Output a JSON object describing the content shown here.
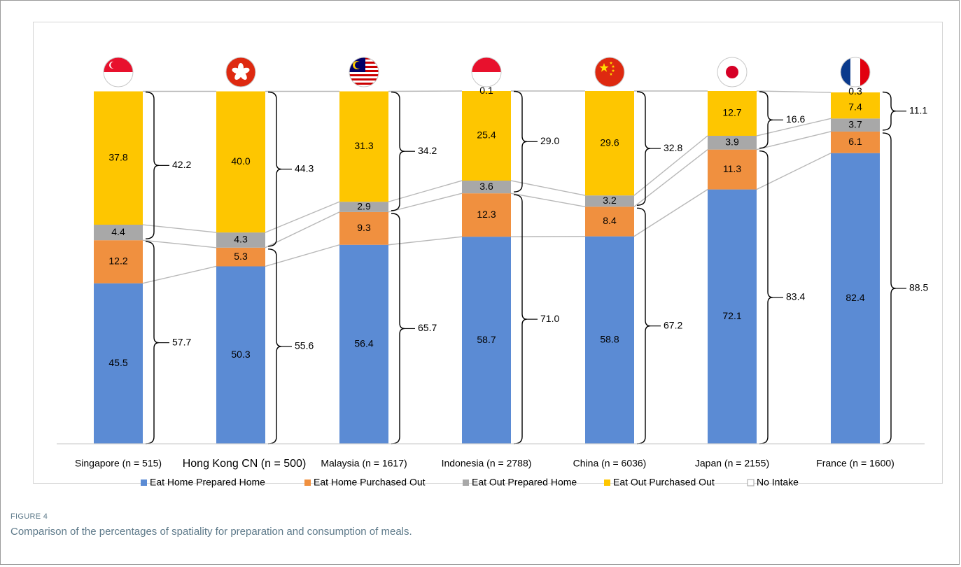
{
  "figure": {
    "label": "FIGURE 4",
    "caption": "Comparison of the percentages of spatiality for preparation and consumption of meals."
  },
  "chart_data": {
    "type": "bar",
    "stacked": true,
    "categories": [
      "Singapore (n = 515)",
      "Hong Kong CN (n = 500)",
      "Malaysia (n = 1617)",
      "Indonesia (n = 2788)",
      "China (n = 6036)",
      "Japan (n = 2155)",
      "France (n = 1600)"
    ],
    "flags": [
      "singapore-flag-icon",
      "hong-kong-flag-icon",
      "malaysia-flag-icon",
      "indonesia-flag-icon",
      "china-flag-icon",
      "japan-flag-icon",
      "france-flag-icon"
    ],
    "series": [
      {
        "name": "Eat Home Prepared Home",
        "color": "#5b8bd4",
        "values": [
          45.5,
          50.3,
          56.4,
          58.7,
          58.8,
          72.1,
          82.4
        ]
      },
      {
        "name": "Eat Home Purchased Out",
        "color": "#f0903f",
        "values": [
          12.2,
          5.3,
          9.3,
          12.3,
          8.4,
          11.3,
          6.1
        ]
      },
      {
        "name": "Eat Out Prepared Home",
        "color": "#a8a8a8",
        "values": [
          4.4,
          4.3,
          2.9,
          3.6,
          3.2,
          3.9,
          3.7
        ]
      },
      {
        "name": "Eat Out Purchased Out",
        "color": "#fec600",
        "values": [
          37.8,
          40.0,
          31.3,
          25.4,
          29.6,
          12.7,
          7.4
        ]
      },
      {
        "name": "No Intake",
        "color": "#ffffff",
        "values": [
          0,
          0,
          0,
          0.1,
          0,
          0,
          0.3
        ]
      }
    ],
    "bracket_totals": {
      "eat_home": [
        57.7,
        55.6,
        65.7,
        71.0,
        67.2,
        83.4,
        88.5
      ],
      "eat_out": [
        42.2,
        44.3,
        34.2,
        29.0,
        32.8,
        16.6,
        11.1
      ]
    },
    "ylim": [
      0,
      100
    ],
    "legend_position": "bottom"
  }
}
